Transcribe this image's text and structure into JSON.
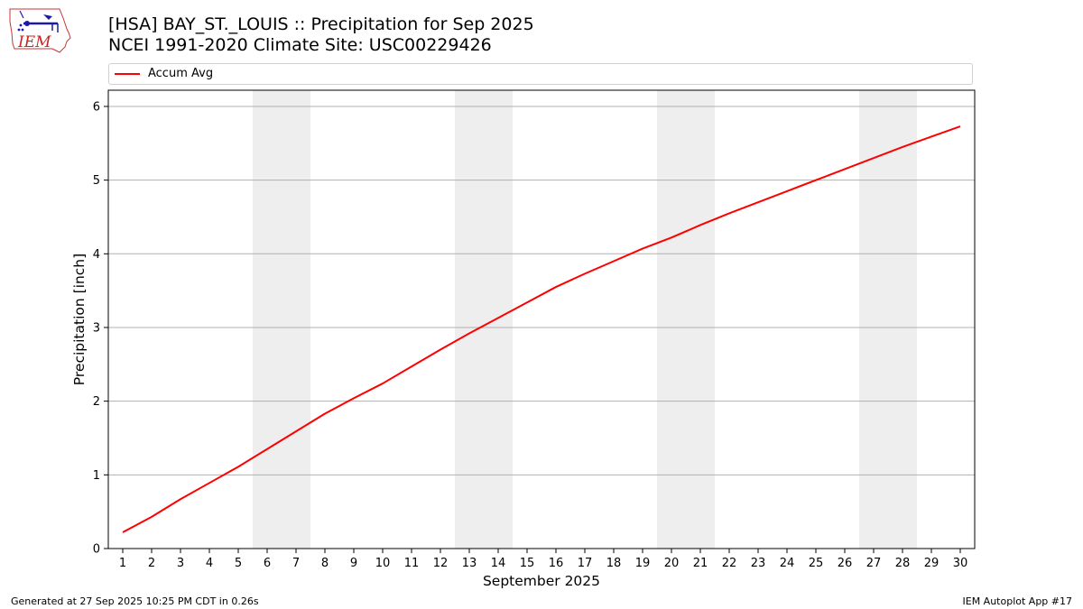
{
  "header": {
    "title_line1": "[HSA] BAY_ST._LOUIS :: Precipitation for Sep 2025",
    "title_line2": "NCEI 1991-2020 Climate Site: USC00229426"
  },
  "logo": {
    "icon": "iem-logo-icon",
    "text": "IEM",
    "color": "#cc2222",
    "accent": "#1a1aa6"
  },
  "legend": {
    "label": "Accum Avg",
    "color": "#ff0000"
  },
  "footer": {
    "left": "Generated at 27 Sep 2025 10:25 PM CDT in 0.26s",
    "right": "IEM Autoplot App #17"
  },
  "chart_data": {
    "type": "line",
    "xlabel": "September 2025",
    "ylabel": "Precipitation [inch]",
    "xlim": [
      0.5,
      30.5
    ],
    "ylim": [
      0,
      6.22
    ],
    "yticks": [
      0,
      1,
      2,
      3,
      4,
      5,
      6
    ],
    "xticks": [
      1,
      2,
      3,
      4,
      5,
      6,
      7,
      8,
      9,
      10,
      11,
      12,
      13,
      14,
      15,
      16,
      17,
      18,
      19,
      20,
      21,
      22,
      23,
      24,
      25,
      26,
      27,
      28,
      29,
      30
    ],
    "grid": "horizontal",
    "legend_position": "top",
    "shaded_spans": [
      [
        5.5,
        7.5
      ],
      [
        12.5,
        14.5
      ],
      [
        19.5,
        21.5
      ],
      [
        26.5,
        28.5
      ]
    ],
    "shade_color": "#eeeeee",
    "series": [
      {
        "name": "Accum Avg",
        "color": "#ff0000",
        "x": [
          1,
          2,
          3,
          4,
          5,
          6,
          7,
          8,
          9,
          10,
          11,
          12,
          13,
          14,
          15,
          16,
          17,
          18,
          19,
          20,
          21,
          22,
          23,
          24,
          25,
          26,
          27,
          28,
          29,
          30
        ],
        "y": [
          0.22,
          0.43,
          0.67,
          0.89,
          1.11,
          1.35,
          1.59,
          1.83,
          2.04,
          2.24,
          2.47,
          2.7,
          2.92,
          3.13,
          3.34,
          3.55,
          3.73,
          3.9,
          4.07,
          4.22,
          4.39,
          4.55,
          4.7,
          4.85,
          5.0,
          5.15,
          5.3,
          5.45,
          5.59,
          5.73
        ]
      }
    ]
  }
}
